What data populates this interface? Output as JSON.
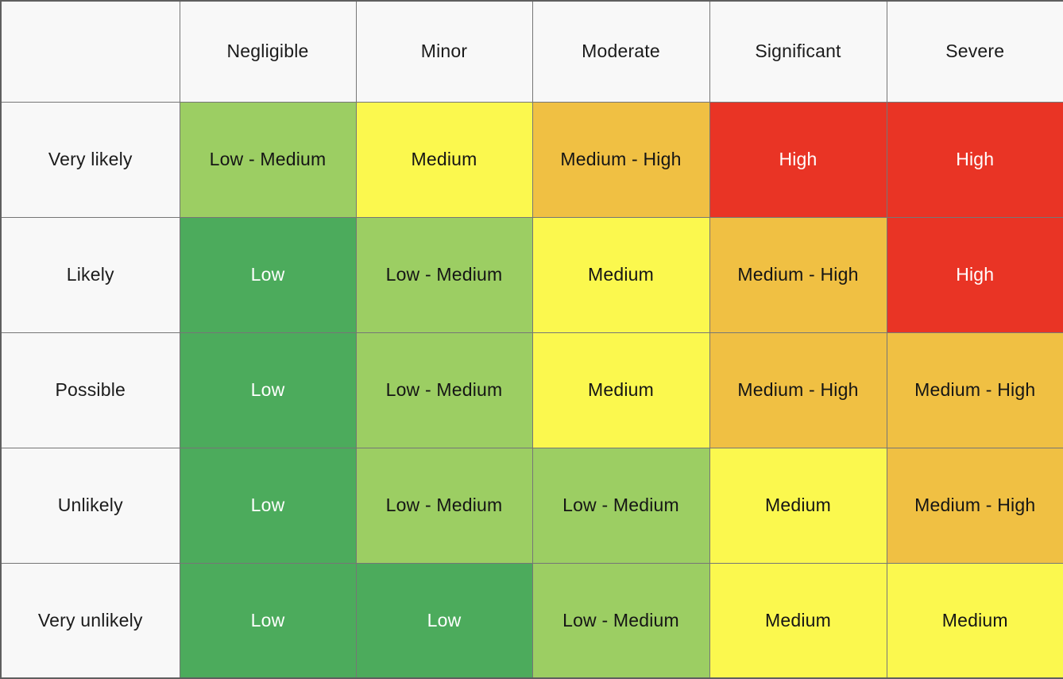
{
  "chart_data": {
    "type": "heatmap",
    "x_axis_meaning": "severity",
    "y_axis_meaning": "likelihood",
    "x_categories": [
      "Negligible",
      "Minor",
      "Moderate",
      "Significant",
      "Severe"
    ],
    "y_categories": [
      "Very likely",
      "Likely",
      "Possible",
      "Unlikely",
      "Very unlikely"
    ],
    "rows": [
      {
        "label": "Very likely",
        "cells": [
          "low-medium",
          "medium",
          "medium-high",
          "high",
          "high"
        ]
      },
      {
        "label": "Likely",
        "cells": [
          "low",
          "low-medium",
          "medium",
          "medium-high",
          "high"
        ]
      },
      {
        "label": "Possible",
        "cells": [
          "low",
          "low-medium",
          "medium",
          "medium-high",
          "medium-high"
        ]
      },
      {
        "label": "Unlikely",
        "cells": [
          "low",
          "low-medium",
          "low-medium",
          "medium",
          "medium-high"
        ]
      },
      {
        "label": "Very unlikely",
        "cells": [
          "low",
          "low",
          "low-medium",
          "medium",
          "medium"
        ]
      }
    ],
    "grid": "on",
    "legend": "none"
  },
  "levels": {
    "low": {
      "label": "Low",
      "bg": "#4CAB5C",
      "text": "#FFFFFF"
    },
    "low-medium": {
      "label": "Low - Medium",
      "bg": "#9CCE63",
      "text": "#151515"
    },
    "medium": {
      "label": "Medium",
      "bg": "#FBF84E",
      "text": "#151515"
    },
    "medium-high": {
      "label": "Medium - High",
      "bg": "#F0C043",
      "text": "#151515"
    },
    "high": {
      "label": "High",
      "bg": "#E93425",
      "text": "#FFFFFF"
    }
  },
  "style": {
    "header_bg": "#F8F8F8",
    "grid_line_color": "#767676",
    "outer_border_color": "#5F5F5F"
  }
}
